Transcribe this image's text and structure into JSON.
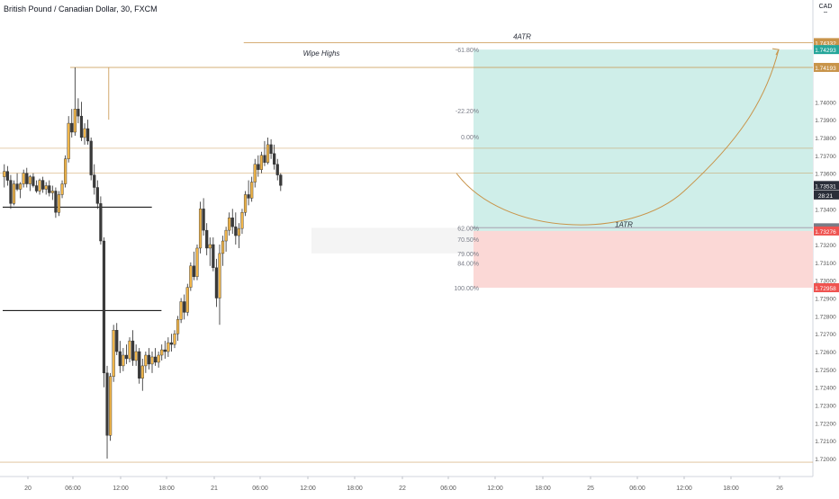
{
  "header": {
    "symbol": "British Pound / Canadian Dollar, 30, FXCM",
    "currency": "CAD"
  },
  "colors": {
    "up": "#f0b54a",
    "down": "#3a3a3a",
    "level_line": "#c8944a",
    "target_zone": "#cfeee9",
    "stop_zone": "#fbd8d6",
    "grid": "#f1f3f6",
    "axis_text": "#555555",
    "horizontal_black": "#000000"
  },
  "chart_data": {
    "type": "candlestick",
    "title": "British Pound / Canadian Dollar, 30, FXCM",
    "ylim": [
      1.7195,
      1.7446
    ],
    "y_ticks": [
      "1.74000",
      "1.73900",
      "1.73800",
      "1.73700",
      "1.73600",
      "1.73400",
      "1.73200",
      "1.73100",
      "1.73000",
      "1.72900",
      "1.72800",
      "1.72700",
      "1.72600",
      "1.72500",
      "1.72400",
      "1.72300",
      "1.72200",
      "1.72100",
      "1.72000"
    ],
    "x_ticks": [
      "20",
      "06:00",
      "12:00",
      "18:00",
      "21",
      "06:00",
      "12:00",
      "18:00",
      "22",
      "06:00",
      "12:00",
      "18:00",
      "25",
      "06:00",
      "12:00",
      "18:00",
      "26"
    ],
    "price_labels": [
      {
        "text": "1.74332",
        "value": 1.74332,
        "color": "#c8944a"
      },
      {
        "text": "1.74293",
        "value": 1.74293,
        "color": "#26a69a"
      },
      {
        "text": "1.74193",
        "value": 1.74193,
        "color": "#c8944a"
      },
      {
        "text": "1.73531",
        "value": 1.73531,
        "color": "#2a2e39"
      },
      {
        "text": "28:21",
        "value": 1.73478,
        "color": "#2a2e39"
      },
      {
        "text": "1.73294",
        "value": 1.73294,
        "color": "#787b86"
      },
      {
        "text": "1.73276",
        "value": 1.73276,
        "color": "#ef5350"
      },
      {
        "text": "1.72958",
        "value": 1.72958,
        "color": "#ef5350"
      }
    ],
    "horizontal_levels": [
      {
        "name": "4ATR",
        "value": 1.74332,
        "from_bar": 75,
        "label": "4ATR"
      },
      {
        "name": "Wipe Highs",
        "value": 1.74193,
        "from_bar": 21,
        "label": "Wipe Highs"
      },
      {
        "name": "level-173740",
        "value": 1.7374,
        "from_bar": 0,
        "label": ""
      },
      {
        "name": "level-173600",
        "value": 1.736,
        "from_bar": 0,
        "label": ""
      },
      {
        "name": "1ATR",
        "value": 1.73294,
        "from_bar": 146,
        "label": "1ATR"
      },
      {
        "name": "level-171980",
        "value": 1.7198,
        "from_bar": 0,
        "label": ""
      }
    ],
    "black_lines": [
      {
        "value": 1.7341,
        "from_bar": 0,
        "to_bar": 30
      },
      {
        "value": 1.7283,
        "from_bar": 0,
        "to_bar": 33
      }
    ],
    "fib_levels": [
      {
        "label": "-61.80%",
        "value": 1.74293
      },
      {
        "label": "-22.20%",
        "value": 1.7395
      },
      {
        "label": "0.00%",
        "value": 1.73806
      },
      {
        "label": "62.00%",
        "value": 1.73294
      },
      {
        "label": "70.50%",
        "value": 1.7323
      },
      {
        "label": "79.00%",
        "value": 1.7315
      },
      {
        "label": "84.00%",
        "value": 1.73096
      },
      {
        "label": "100.00%",
        "value": 1.72958
      }
    ],
    "position": {
      "entry": 1.73276,
      "target": 1.74293,
      "stop": 1.72958
    },
    "annotations": [
      "4ATR",
      "Wipe Highs",
      "1ATR"
    ],
    "candles": [
      [
        1.7358,
        1.7365,
        1.7352,
        1.7361
      ],
      [
        1.7361,
        1.7364,
        1.7353,
        1.7356
      ],
      [
        1.7356,
        1.7359,
        1.734,
        1.7343
      ],
      [
        1.7343,
        1.7356,
        1.7342,
        1.7354
      ],
      [
        1.7354,
        1.736,
        1.735,
        1.7351
      ],
      [
        1.7351,
        1.7355,
        1.7346,
        1.7354
      ],
      [
        1.7354,
        1.7362,
        1.7352,
        1.736
      ],
      [
        1.736,
        1.7363,
        1.7352,
        1.7354
      ],
      [
        1.7354,
        1.7359,
        1.735,
        1.7358
      ],
      [
        1.7358,
        1.736,
        1.7352,
        1.7353
      ],
      [
        1.7353,
        1.7356,
        1.7349,
        1.735
      ],
      [
        1.735,
        1.7357,
        1.7348,
        1.7356
      ],
      [
        1.7356,
        1.7358,
        1.7349,
        1.7351
      ],
      [
        1.7351,
        1.7355,
        1.7348,
        1.7353
      ],
      [
        1.7353,
        1.7356,
        1.7347,
        1.7349
      ],
      [
        1.7349,
        1.7353,
        1.7345,
        1.735
      ],
      [
        1.735,
        1.7352,
        1.7335,
        1.7338
      ],
      [
        1.7338,
        1.735,
        1.7336,
        1.7348
      ],
      [
        1.7348,
        1.7356,
        1.7346,
        1.7354
      ],
      [
        1.7354,
        1.737,
        1.7352,
        1.7368
      ],
      [
        1.7368,
        1.7392,
        1.7366,
        1.7388
      ],
      [
        1.7388,
        1.7396,
        1.738,
        1.7383
      ],
      [
        1.7383,
        1.74193,
        1.7381,
        1.7396
      ],
      [
        1.7396,
        1.7402,
        1.7388,
        1.7392
      ],
      [
        1.7392,
        1.74,
        1.7378,
        1.738
      ],
      [
        1.738,
        1.7388,
        1.7376,
        1.7385
      ],
      [
        1.7385,
        1.739,
        1.7376,
        1.7378
      ],
      [
        1.7378,
        1.738,
        1.7356,
        1.7359
      ],
      [
        1.7359,
        1.7365,
        1.7348,
        1.7352
      ],
      [
        1.7352,
        1.7356,
        1.734,
        1.7343
      ],
      [
        1.7343,
        1.7347,
        1.732,
        1.7322
      ],
      [
        1.7322,
        1.7324,
        1.724,
        1.7248
      ],
      [
        1.7248,
        1.7252,
        1.72,
        1.7213
      ],
      [
        1.7213,
        1.7248,
        1.721,
        1.7246
      ],
      [
        1.7246,
        1.7275,
        1.7243,
        1.7272
      ],
      [
        1.7272,
        1.7276,
        1.7258,
        1.726
      ],
      [
        1.726,
        1.7266,
        1.7248,
        1.7252
      ],
      [
        1.7252,
        1.7262,
        1.7249,
        1.7258
      ],
      [
        1.7258,
        1.7264,
        1.7253,
        1.7256
      ],
      [
        1.7256,
        1.7268,
        1.7254,
        1.7266
      ],
      [
        1.7266,
        1.7272,
        1.7252,
        1.7255
      ],
      [
        1.7255,
        1.7264,
        1.7252,
        1.726
      ],
      [
        1.726,
        1.7262,
        1.7242,
        1.7245
      ],
      [
        1.7245,
        1.7256,
        1.7238,
        1.7252
      ],
      [
        1.7252,
        1.726,
        1.7248,
        1.7258
      ],
      [
        1.7258,
        1.7262,
        1.725,
        1.7253
      ],
      [
        1.7253,
        1.726,
        1.7248,
        1.7257
      ],
      [
        1.7257,
        1.7262,
        1.7252,
        1.7254
      ],
      [
        1.7254,
        1.726,
        1.7251,
        1.7258
      ],
      [
        1.7258,
        1.7264,
        1.7255,
        1.7261
      ],
      [
        1.7261,
        1.7266,
        1.7256,
        1.726
      ],
      [
        1.726,
        1.7268,
        1.7257,
        1.7265
      ],
      [
        1.7265,
        1.727,
        1.726,
        1.7264
      ],
      [
        1.7264,
        1.7272,
        1.7262,
        1.727
      ],
      [
        1.727,
        1.728,
        1.7266,
        1.7278
      ],
      [
        1.7278,
        1.729,
        1.7276,
        1.7288
      ],
      [
        1.7288,
        1.7292,
        1.7278,
        1.7282
      ],
      [
        1.7282,
        1.7298,
        1.728,
        1.7296
      ],
      [
        1.7296,
        1.731,
        1.7294,
        1.7308
      ],
      [
        1.7308,
        1.7316,
        1.73,
        1.7302
      ],
      [
        1.7302,
        1.732,
        1.73,
        1.7318
      ],
      [
        1.7318,
        1.7344,
        1.7315,
        1.734
      ],
      [
        1.734,
        1.7346,
        1.7325,
        1.7328
      ],
      [
        1.7328,
        1.7332,
        1.7314,
        1.7318
      ],
      [
        1.7318,
        1.7324,
        1.7308,
        1.732
      ],
      [
        1.732,
        1.7324,
        1.7305,
        1.7307
      ],
      [
        1.7307,
        1.7312,
        1.7285,
        1.729
      ],
      [
        1.729,
        1.732,
        1.7275,
        1.7315
      ],
      [
        1.7315,
        1.7325,
        1.7308,
        1.7322
      ],
      [
        1.7322,
        1.733,
        1.7316,
        1.7328
      ],
      [
        1.7328,
        1.7338,
        1.7325,
        1.7335
      ],
      [
        1.7335,
        1.734,
        1.7326,
        1.733
      ],
      [
        1.733,
        1.7338,
        1.732,
        1.7325
      ],
      [
        1.7325,
        1.7332,
        1.7318,
        1.7329
      ],
      [
        1.7329,
        1.734,
        1.7326,
        1.7338
      ],
      [
        1.7338,
        1.735,
        1.7336,
        1.7348
      ],
      [
        1.7348,
        1.7356,
        1.7342,
        1.7346
      ],
      [
        1.7346,
        1.7358,
        1.7344,
        1.7355
      ],
      [
        1.7355,
        1.7368,
        1.7352,
        1.7365
      ],
      [
        1.7365,
        1.737,
        1.7358,
        1.7362
      ],
      [
        1.7362,
        1.7372,
        1.736,
        1.737
      ],
      [
        1.737,
        1.7378,
        1.7364,
        1.7366
      ],
      [
        1.7366,
        1.738,
        1.7365,
        1.7376
      ],
      [
        1.7376,
        1.7379,
        1.7368,
        1.7371
      ],
      [
        1.7371,
        1.7376,
        1.7362,
        1.7365
      ],
      [
        1.7365,
        1.7368,
        1.7356,
        1.7359
      ],
      [
        1.7359,
        1.736,
        1.735,
        1.73531
      ]
    ]
  }
}
